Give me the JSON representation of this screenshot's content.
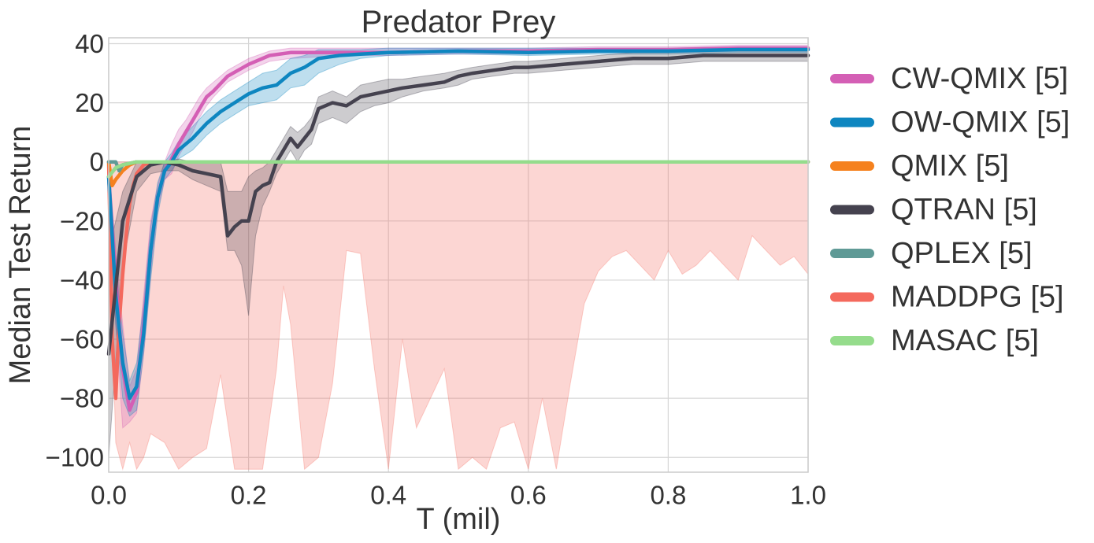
{
  "chart_data": {
    "type": "line",
    "title": "Predator Prey",
    "xlabel": "T (mil)",
    "ylabel": "Median Test Return",
    "xlim": [
      0,
      1.0
    ],
    "ylim": [
      -105,
      42
    ],
    "x_ticks": [
      0,
      0.2,
      0.4,
      0.6,
      0.8,
      1.0
    ],
    "x_tick_labels": [
      "0.0",
      "0.2",
      "0.4",
      "0.6",
      "0.8",
      "1.0"
    ],
    "y_ticks": [
      40,
      20,
      0,
      -20,
      -40,
      -60,
      -80,
      -100
    ],
    "y_tick_labels": [
      "40",
      "20",
      "0",
      "−20",
      "−40",
      "−60",
      "−80",
      "−100"
    ],
    "grid": true,
    "legend_position": "outside-right",
    "series": [
      {
        "name": "CW-QMIX [5]",
        "color": "#d45fb5",
        "x": [
          0,
          0.01,
          0.02,
          0.03,
          0.04,
          0.05,
          0.06,
          0.07,
          0.08,
          0.09,
          0.1,
          0.11,
          0.12,
          0.13,
          0.14,
          0.15,
          0.17,
          0.2,
          0.23,
          0.26,
          0.3,
          0.35,
          0.4,
          0.5,
          0.6,
          0.7,
          0.8,
          0.9,
          1.0
        ],
        "y": [
          -5,
          -40,
          -70,
          -84,
          -78,
          -55,
          -30,
          -12,
          -3,
          1,
          6,
          10,
          14,
          18,
          22,
          24,
          29,
          33,
          36,
          37,
          37,
          37,
          37,
          37.5,
          37.5,
          38,
          38,
          38.5,
          38.5
        ],
        "band_low": [
          -10,
          -55,
          -90,
          -88,
          -85,
          -65,
          -38,
          -16,
          -6,
          -4,
          2,
          6,
          10,
          15,
          19,
          22,
          27,
          31,
          34,
          35,
          35.5,
          36,
          36,
          36.5,
          36.5,
          37,
          37,
          37.5,
          37.5
        ],
        "band_high": [
          0,
          -30,
          -55,
          -76,
          -70,
          -45,
          -20,
          -8,
          0,
          6,
          11,
          14,
          18,
          22,
          25,
          27,
          31,
          35,
          37.5,
          38.5,
          38.5,
          38.5,
          38.5,
          38.5,
          38.5,
          39,
          39,
          39.5,
          39.5
        ]
      },
      {
        "name": "OW-QMIX [5]",
        "color": "#0e86c0",
        "x": [
          0,
          0.01,
          0.02,
          0.03,
          0.04,
          0.05,
          0.06,
          0.07,
          0.08,
          0.09,
          0.1,
          0.12,
          0.14,
          0.16,
          0.18,
          0.2,
          0.22,
          0.24,
          0.26,
          0.28,
          0.3,
          0.33,
          0.36,
          0.4,
          0.5,
          0.6,
          0.7,
          0.8,
          0.9,
          1.0
        ],
        "y": [
          -5,
          -45,
          -68,
          -80,
          -76,
          -58,
          -30,
          -12,
          -3,
          0,
          4,
          8,
          13,
          17,
          20,
          23,
          25,
          26,
          30,
          32,
          35,
          36,
          36.5,
          37,
          37.5,
          37,
          37.5,
          37.5,
          38,
          38
        ],
        "band_low": [
          -8,
          -55,
          -80,
          -86,
          -84,
          -65,
          -40,
          -18,
          -6,
          -3,
          1,
          4,
          9,
          13,
          16,
          19,
          20,
          21,
          25,
          26,
          30,
          33,
          35,
          36,
          36.5,
          36,
          36.5,
          36.5,
          37,
          37
        ],
        "band_high": [
          0,
          -35,
          -58,
          -74,
          -68,
          -48,
          -22,
          -7,
          0,
          3,
          7,
          12,
          17,
          21,
          24,
          27,
          30,
          31,
          35,
          36,
          38,
          38,
          38,
          38.5,
          38.5,
          38.5,
          38.5,
          38.5,
          39,
          39
        ]
      },
      {
        "name": "QMIX [5]",
        "color": "#f5811e",
        "x": [
          0,
          0.005,
          0.01,
          0.02,
          0.03,
          0.04,
          0.06,
          0.08,
          0.1,
          0.3,
          0.5,
          0.7,
          0.9,
          1.0
        ],
        "y": [
          0,
          -8,
          -6,
          -3,
          -1,
          0,
          0,
          0,
          0,
          0,
          0,
          0,
          0,
          0
        ]
      },
      {
        "name": "QTRAN [5]",
        "color": "#45424f",
        "x": [
          0,
          0.02,
          0.04,
          0.06,
          0.08,
          0.1,
          0.12,
          0.14,
          0.16,
          0.17,
          0.18,
          0.19,
          0.2,
          0.21,
          0.22,
          0.23,
          0.24,
          0.25,
          0.26,
          0.27,
          0.28,
          0.29,
          0.3,
          0.32,
          0.34,
          0.36,
          0.38,
          0.4,
          0.42,
          0.45,
          0.48,
          0.5,
          0.52,
          0.55,
          0.58,
          0.6,
          0.65,
          0.7,
          0.75,
          0.8,
          0.85,
          0.9,
          0.95,
          1.0
        ],
        "y": [
          -65,
          -20,
          -5,
          -1,
          0,
          -1,
          -3,
          -4,
          -5,
          -25,
          -22,
          -20,
          -20,
          -10,
          -8,
          -7,
          0,
          4,
          8,
          5,
          8,
          11,
          18,
          20,
          19,
          22,
          23,
          24,
          25,
          26,
          27,
          29,
          30,
          31,
          32,
          32,
          33,
          34,
          35,
          35,
          36,
          36,
          36,
          36
        ],
        "band_low": [
          -100,
          -35,
          -10,
          -4,
          -3,
          -3,
          -6,
          -8,
          -10,
          -30,
          -30,
          -35,
          -52,
          -25,
          -15,
          -10,
          -4,
          0,
          4,
          0,
          4,
          6,
          13,
          15,
          13,
          17,
          19,
          20,
          22,
          24,
          25,
          26,
          28,
          29,
          30,
          30,
          31,
          32,
          33,
          33,
          34,
          34,
          34,
          34
        ],
        "band_high": [
          -30,
          -10,
          0,
          0,
          0,
          1,
          0,
          0,
          0,
          -10,
          -10,
          -10,
          -5,
          -3,
          -2,
          0,
          4,
          8,
          12,
          10,
          12,
          15,
          22,
          24,
          22,
          26,
          27,
          28,
          28,
          29,
          30,
          31,
          32,
          33,
          34,
          34,
          35,
          36,
          37,
          37,
          38,
          38,
          38,
          38
        ]
      },
      {
        "name": "QPLEX [5]",
        "color": "#5f9a96",
        "x": [
          0,
          0.01,
          0.015,
          0.02,
          0.04,
          0.06,
          0.1,
          0.3,
          0.5,
          0.7,
          0.9,
          1.0
        ],
        "y": [
          0,
          0,
          -3,
          -1,
          0,
          0,
          0,
          0,
          0,
          0,
          0,
          0
        ]
      },
      {
        "name": "MADDPG [5]",
        "color": "#f4695d",
        "x": [
          0,
          0.005,
          0.01,
          0.015,
          0.02,
          0.025,
          0.03,
          0.035,
          0.04,
          0.05,
          0.06,
          0.08,
          0.1,
          0.3,
          0.5,
          0.7,
          0.9,
          1.0
        ],
        "y": [
          0,
          -60,
          -80,
          -55,
          -38,
          -25,
          -14,
          -8,
          -4,
          -1,
          0,
          0,
          0,
          0,
          0,
          0,
          0,
          0
        ],
        "band_low": [
          -10,
          -95,
          -104,
          -95,
          -104,
          -100,
          -92,
          -95,
          -105,
          -95,
          -100,
          -98,
          -92,
          -104,
          -100,
          -104,
          -35,
          -38
        ],
        "band_high": [
          0,
          0,
          0,
          0,
          0,
          0,
          0,
          0,
          0,
          0,
          0,
          0,
          0,
          0,
          0,
          0,
          0,
          0
        ],
        "band_x": [
          0,
          0.01,
          0.02,
          0.03,
          0.04,
          0.05,
          0.06,
          0.08,
          0.1,
          0.12,
          0.14,
          0.16,
          0.18,
          0.2,
          0.22,
          0.24,
          0.25,
          0.26,
          0.28,
          0.3,
          0.32,
          0.34,
          0.36,
          0.38,
          0.4,
          0.42,
          0.44,
          0.46,
          0.48,
          0.5,
          0.52,
          0.54,
          0.56,
          0.58,
          0.6,
          0.62,
          0.64,
          0.66,
          0.68,
          0.7,
          0.72,
          0.74,
          0.76,
          0.78,
          0.8,
          0.82,
          0.84,
          0.86,
          0.88,
          0.9,
          0.92,
          0.94,
          0.96,
          0.98,
          1.0
        ],
        "band_low_full": [
          -10,
          -95,
          -104,
          -95,
          -104,
          -100,
          -92,
          -95,
          -104,
          -100,
          -97,
          -72,
          -104,
          -104,
          -104,
          -70,
          -42,
          -55,
          -104,
          -100,
          -75,
          -30,
          -31,
          -70,
          -104,
          -60,
          -90,
          -80,
          -70,
          -104,
          -100,
          -104,
          -90,
          -88,
          -104,
          -80,
          -104,
          -75,
          -48,
          -37,
          -32,
          -30,
          -35,
          -40,
          -30,
          -38,
          -35,
          -30,
          -35,
          -40,
          -25,
          -30,
          -35,
          -32,
          -38
        ]
      },
      {
        "name": "MASAC [5]",
        "color": "#95dc8c",
        "x": [
          0,
          0.01,
          0.02,
          0.04,
          0.06,
          0.1,
          0.3,
          0.5,
          0.7,
          0.9,
          1.0
        ],
        "y": [
          -5,
          -2,
          -1,
          0,
          0,
          0,
          0,
          0,
          0,
          0,
          0
        ]
      }
    ]
  }
}
